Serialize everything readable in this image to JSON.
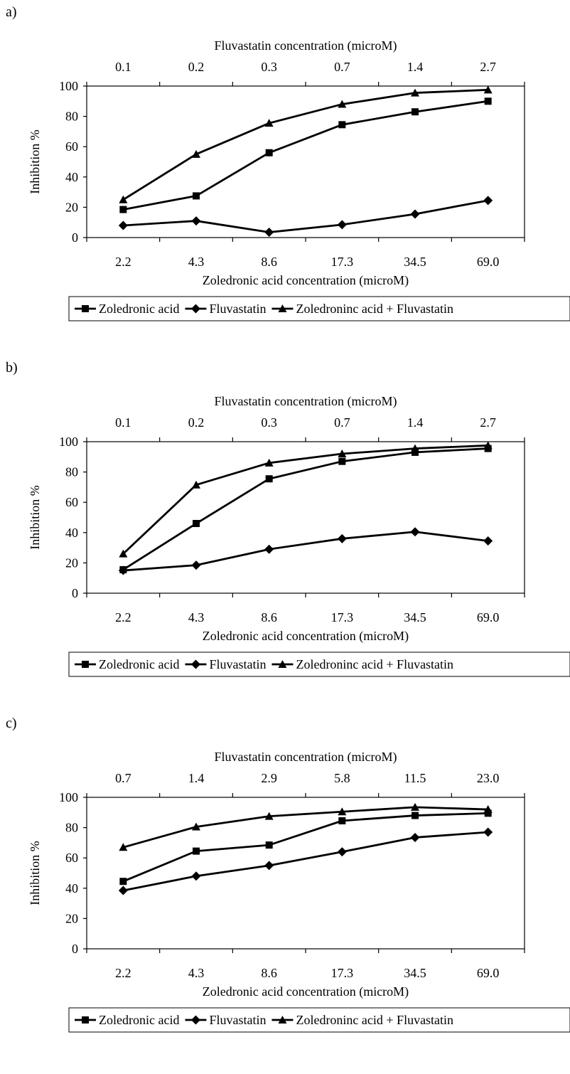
{
  "chart_data": [
    {
      "type": "line",
      "panel_label": "a)",
      "categories": [
        "2.2",
        "4.3",
        "8.6",
        "17.3",
        "34.5",
        "69.0"
      ],
      "top_categories": [
        "0.1",
        "0.2",
        "0.3",
        "0.7",
        "1.4",
        "2.7"
      ],
      "xlabel": "Zoledronic acid concentration (microM)",
      "top_xlabel": "Fluvastatin concentration (microM)",
      "ylabel": "Inhibition %",
      "ylim": [
        0,
        100
      ],
      "yticks": [
        "0",
        "20",
        "40",
        "60",
        "80",
        "100"
      ],
      "series": [
        {
          "name": "Zoledronic acid",
          "marker": "square",
          "values": [
            18.5,
            27.5,
            56,
            74.5,
            83,
            90
          ]
        },
        {
          "name": "Fluvastatin",
          "marker": "diamond",
          "values": [
            8,
            11,
            3.5,
            8.5,
            15.5,
            24.5
          ]
        },
        {
          "name": "Zoledroninc acid + Fluvastatin",
          "marker": "triangle",
          "values": [
            25,
            55,
            75.5,
            88,
            95.5,
            97.5
          ]
        }
      ],
      "grid": false,
      "legend_position": "bottom"
    },
    {
      "type": "line",
      "panel_label": "b)",
      "categories": [
        "2.2",
        "4.3",
        "8.6",
        "17.3",
        "34.5",
        "69.0"
      ],
      "top_categories": [
        "0.1",
        "0.2",
        "0.3",
        "0.7",
        "1.4",
        "2.7"
      ],
      "xlabel": "Zoledronic acid concentration (microM)",
      "top_xlabel": "Fluvastatin concentration (microM)",
      "ylabel": "Inhibition %",
      "ylim": [
        0,
        100
      ],
      "yticks": [
        "0",
        "20",
        "40",
        "60",
        "80",
        "100"
      ],
      "series": [
        {
          "name": "Zoledronic acid",
          "marker": "square",
          "values": [
            15.5,
            46,
            75.5,
            87,
            93,
            95.5
          ]
        },
        {
          "name": "Fluvastatin",
          "marker": "diamond",
          "values": [
            15,
            18.5,
            29,
            36,
            40.5,
            34.5
          ]
        },
        {
          "name": "Zoledroninc acid + Fluvastatin",
          "marker": "triangle",
          "values": [
            26,
            71.5,
            86,
            92,
            95.5,
            97.5
          ]
        }
      ],
      "grid": false,
      "legend_position": "bottom"
    },
    {
      "type": "line",
      "panel_label": "c)",
      "categories": [
        "2.2",
        "4.3",
        "8.6",
        "17.3",
        "34.5",
        "69.0"
      ],
      "top_categories": [
        "0.7",
        "1.4",
        "2.9",
        "5.8",
        "11.5",
        "23.0"
      ],
      "xlabel": "Zoledronic acid concentration (microM)",
      "top_xlabel": "Fluvastatin concentration (microM)",
      "ylabel": "Inhibition %",
      "ylim": [
        0,
        100
      ],
      "yticks": [
        "0",
        "20",
        "40",
        "60",
        "80",
        "100"
      ],
      "series": [
        {
          "name": "Zoledronic acid",
          "marker": "square",
          "values": [
            44.5,
            64.5,
            68.5,
            84.5,
            88,
            89.5
          ]
        },
        {
          "name": "Fluvastatin",
          "marker": "diamond",
          "values": [
            38.5,
            48,
            55,
            64,
            73.5,
            77
          ]
        },
        {
          "name": "Zoledroninc acid + Fluvastatin",
          "marker": "triangle",
          "values": [
            67,
            80.5,
            87.5,
            90.5,
            93.5,
            92
          ]
        }
      ],
      "grid": false,
      "legend_position": "bottom"
    }
  ]
}
